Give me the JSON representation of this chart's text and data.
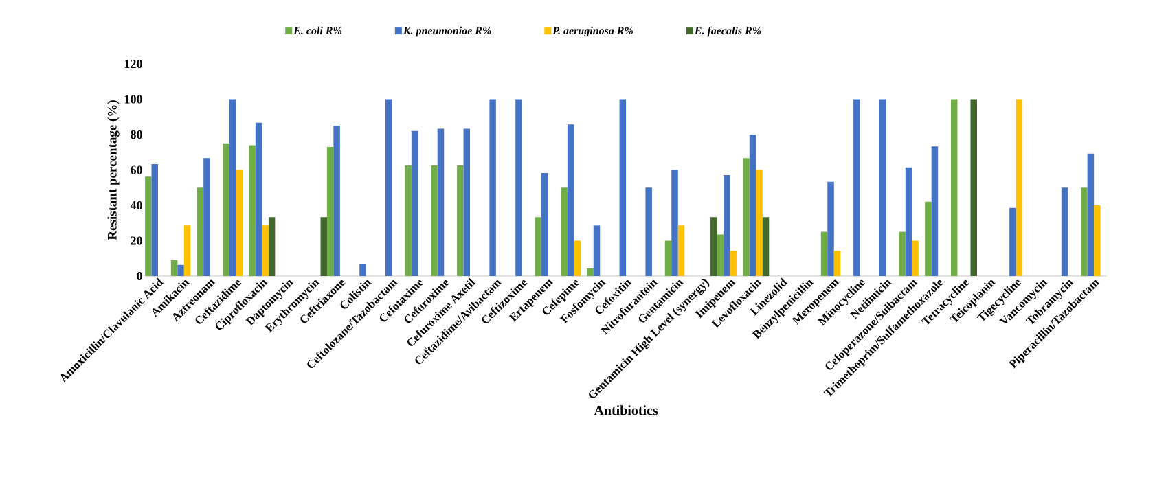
{
  "chart_data": {
    "type": "bar",
    "xlabel": "Antibiotics",
    "ylabel": "Resistant percentage (%)",
    "categories": [
      "Amoxicillin/Clavulanic Acid",
      "Amikacin",
      "Aztreonam",
      "Ceftazidime",
      "Ciprofloxacin",
      "Daptomycin",
      "Erythromycin",
      "Ceftriaxone",
      "Colistin",
      "Ceftolozane/Tazobactam",
      "Cefotaxime",
      "Cefuroxime",
      "Cefuroxime Axetil",
      "Ceftazidime/Avibactam",
      "Ceftizoxime",
      "Ertapenem",
      "Cefepime",
      "Fosfomycin",
      "Cefoxitin",
      "Nitrofurantoin",
      "Gentamicin",
      "Gentamicin High Level (synergy)",
      "Imipenem",
      "Levofloxacin",
      "Linezolid",
      "Benzylpenicillin",
      "Meropenem",
      "Minocycline",
      "Netilmicin",
      "Cefoperazone/Sulbactam",
      "Trimethoprim/Sulfamethoxazole",
      "Tetracycline",
      "Teicoplanin",
      "Tigecycline",
      "Vancomycin",
      "Tobramycin",
      "Piperacillin/Tazobactam"
    ],
    "series": [
      {
        "name": "*E. coli R%*",
        "color": "#70ad47",
        "values": [
          56.2,
          9,
          50,
          75,
          74,
          null,
          null,
          73,
          null,
          null,
          62.5,
          62.5,
          62.5,
          null,
          null,
          33.3,
          50,
          4.3,
          null,
          null,
          20,
          null,
          23.5,
          66.7,
          null,
          null,
          25,
          null,
          null,
          25,
          42,
          100,
          null,
          null,
          null,
          null,
          50
        ]
      },
      {
        "name": "*K. pneumoniae R%*",
        "color": "#4472c4",
        "values": [
          63.3,
          6.3,
          66.7,
          100,
          86.7,
          null,
          null,
          85,
          7,
          100,
          82,
          83.3,
          83.3,
          100,
          100,
          58.3,
          85.7,
          28.6,
          100,
          50,
          60,
          null,
          57.1,
          80,
          null,
          null,
          53.3,
          100,
          100,
          61.5,
          73.3,
          null,
          null,
          38.5,
          null,
          50,
          69.2
        ]
      },
      {
        "name": "*P. aeruginosa R%*",
        "color": "#ffc000",
        "values": [
          null,
          28.6,
          null,
          60,
          28.6,
          null,
          null,
          null,
          null,
          null,
          null,
          null,
          null,
          null,
          null,
          null,
          20,
          null,
          null,
          null,
          28.6,
          null,
          14.3,
          60,
          null,
          null,
          14.3,
          null,
          null,
          20,
          null,
          null,
          null,
          100,
          null,
          null,
          40
        ]
      },
      {
        "name": "*E. faecalis R%*",
        "color": "#43682b",
        "values": [
          null,
          null,
          null,
          null,
          33.3,
          null,
          33.3,
          null,
          null,
          null,
          null,
          null,
          null,
          null,
          null,
          null,
          null,
          null,
          null,
          null,
          null,
          33.3,
          null,
          33.3,
          null,
          null,
          null,
          null,
          null,
          null,
          null,
          100,
          null,
          null,
          null,
          null,
          null
        ]
      }
    ],
    "ylim": [
      0,
      120
    ],
    "yticks": [
      0,
      20,
      40,
      60,
      80,
      100,
      120
    ],
    "legend": "top"
  }
}
